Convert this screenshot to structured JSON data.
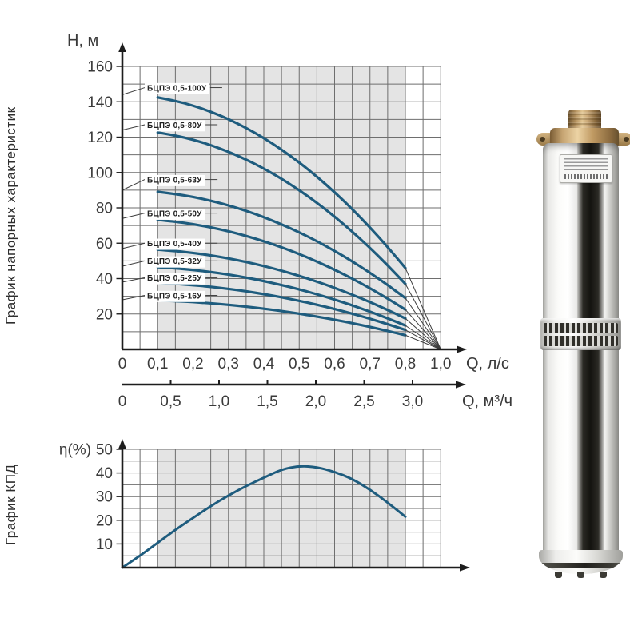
{
  "titles": {
    "head_chart_title": "График напорных характеристик",
    "efficiency_chart_title": "График КПД"
  },
  "colors": {
    "curve": "#1e5c7e",
    "grid": "#6e6e6e",
    "band": "#e4e4e4",
    "axis": "#1d1d1d",
    "text": "#3a3a3a",
    "leader": "#3f3f3f",
    "label_text": "#222222",
    "label_bg": "#ffffff",
    "pump_brass": "#b4915e",
    "pump_steel": "#e6e6e4",
    "pump_stripe": "#2b2a25"
  },
  "chart_data": [
    {
      "id": "head_chart",
      "type": "line",
      "title": "График напорных характеристик",
      "ylabel": "H, м",
      "xlabel": "Q, л/с",
      "xlabel_secondary": "Q, м³/ч",
      "ylim": [
        0,
        160
      ],
      "y_grid_step": 10,
      "x_grid_step_lps": 0.05,
      "x_tick_labels": [
        "0",
        "0,1",
        "0,2",
        "0,3",
        "0,4",
        "0,5",
        "0,6",
        "0,7",
        "0,8",
        "1,0"
      ],
      "x2_tick_labels": [
        "0",
        "0,5",
        "1,0",
        "1,5",
        "2,0",
        "2,5",
        "3,0"
      ],
      "y_tick_labels": [
        "20",
        "40",
        "60",
        "80",
        "100",
        "120",
        "140",
        "160"
      ],
      "operating_range_lps": [
        0.1,
        0.8
      ],
      "convergence_point": {
        "x_label": "1,0",
        "h": 0
      },
      "series": [
        {
          "name": "БЦПЭ 0,5-100У",
          "h_at_q0": 144,
          "h_at_q08": 46,
          "label_h": 148
        },
        {
          "name": "БЦПЭ 0,5-80У",
          "h_at_q0": 124,
          "h_at_q08": 37,
          "label_h": 127
        },
        {
          "name": "БЦПЭ 0,5-63У",
          "h_at_q0": 90,
          "h_at_q08": 29,
          "label_h": 96
        },
        {
          "name": "БЦПЭ 0,5-50У",
          "h_at_q0": 74,
          "h_at_q08": 22.5,
          "label_h": 77
        },
        {
          "name": "БЦПЭ 0,5-40У",
          "h_at_q0": 57,
          "h_at_q08": 17.5,
          "label_h": 60
        },
        {
          "name": "БЦПЭ 0,5-32У",
          "h_at_q0": 47,
          "h_at_q08": 13.5,
          "label_h": 50
        },
        {
          "name": "БЦПЭ 0,5-25У",
          "h_at_q0": 38,
          "h_at_q08": 11,
          "label_h": 40.5
        },
        {
          "name": "БЦПЭ 0,5-16У",
          "h_at_q0": 28,
          "h_at_q08": 8,
          "label_h": 30.5
        }
      ]
    },
    {
      "id": "efficiency_chart",
      "type": "line",
      "title": "График КПД",
      "ylabel": "η(%)",
      "ylim": [
        0,
        50
      ],
      "y_grid_step": 5,
      "y_tick_labels": [
        "10",
        "20",
        "30",
        "40",
        "50"
      ],
      "operating_range_lps": [
        0.1,
        0.8
      ],
      "x_lps": [
        0,
        0.05,
        0.1,
        0.15,
        0.2,
        0.25,
        0.3,
        0.35,
        0.4,
        0.45,
        0.5,
        0.55,
        0.6,
        0.65,
        0.7,
        0.75,
        0.8
      ],
      "eta": [
        0,
        5,
        10.5,
        16,
        21,
        26,
        30.5,
        34.5,
        38,
        41.5,
        43,
        42.5,
        40.5,
        37.5,
        33,
        27.5,
        21.5
      ]
    }
  ]
}
